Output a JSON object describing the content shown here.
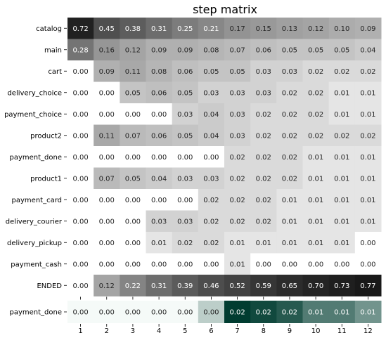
{
  "chart_data": [
    {
      "type": "heatmap",
      "title": "step matrix",
      "rows": [
        "catalog",
        "main",
        "cart",
        "delivery_choice",
        "payment_choice",
        "product2",
        "payment_done",
        "product1",
        "payment_card",
        "delivery_courier",
        "delivery_pickup",
        "payment_cash",
        "ENDED"
      ],
      "columns": [
        "1",
        "2",
        "3",
        "4",
        "5",
        "6",
        "7",
        "8",
        "9",
        "10",
        "11",
        "12"
      ],
      "values": [
        [
          0.72,
          0.45,
          0.38,
          0.31,
          0.25,
          0.21,
          0.17,
          0.15,
          0.13,
          0.12,
          0.1,
          0.09
        ],
        [
          0.28,
          0.16,
          0.12,
          0.09,
          0.09,
          0.08,
          0.07,
          0.06,
          0.05,
          0.05,
          0.05,
          0.04
        ],
        [
          0.0,
          0.09,
          0.11,
          0.08,
          0.06,
          0.05,
          0.05,
          0.03,
          0.03,
          0.02,
          0.02,
          0.02
        ],
        [
          0.0,
          0.0,
          0.05,
          0.06,
          0.05,
          0.03,
          0.03,
          0.03,
          0.02,
          0.02,
          0.01,
          0.01
        ],
        [
          0.0,
          0.0,
          0.0,
          0.0,
          0.03,
          0.04,
          0.03,
          0.02,
          0.02,
          0.02,
          0.01,
          0.01
        ],
        [
          0.0,
          0.11,
          0.07,
          0.06,
          0.05,
          0.04,
          0.03,
          0.02,
          0.02,
          0.02,
          0.02,
          0.02
        ],
        [
          0.0,
          0.0,
          0.0,
          0.0,
          0.0,
          0.0,
          0.02,
          0.02,
          0.02,
          0.01,
          0.01,
          0.01
        ],
        [
          0.0,
          0.07,
          0.05,
          0.04,
          0.03,
          0.03,
          0.02,
          0.02,
          0.02,
          0.01,
          0.01,
          0.01
        ],
        [
          0.0,
          0.0,
          0.0,
          0.0,
          0.0,
          0.02,
          0.02,
          0.02,
          0.01,
          0.01,
          0.01,
          0.01
        ],
        [
          0.0,
          0.0,
          0.0,
          0.03,
          0.03,
          0.02,
          0.02,
          0.02,
          0.01,
          0.01,
          0.01,
          0.01
        ],
        [
          0.0,
          0.0,
          0.0,
          0.01,
          0.02,
          0.02,
          0.01,
          0.01,
          0.01,
          0.01,
          0.01,
          0.0
        ],
        [
          0.0,
          0.0,
          0.0,
          0.0,
          0.0,
          0.0,
          0.01,
          0.0,
          0.0,
          0.0,
          0.0,
          0.0
        ],
        [
          0.0,
          0.12,
          0.22,
          0.31,
          0.39,
          0.46,
          0.52,
          0.59,
          0.65,
          0.7,
          0.73,
          0.77
        ]
      ],
      "colormap": "greys",
      "grid": false,
      "legend": "none"
    },
    {
      "type": "heatmap",
      "title": "",
      "rows": [
        "payment_done"
      ],
      "columns": [
        "1",
        "2",
        "3",
        "4",
        "5",
        "6",
        "7",
        "8",
        "9",
        "10",
        "11",
        "12"
      ],
      "values": [
        [
          0.0,
          0.0,
          0.0,
          0.0,
          0.0,
          0.0,
          0.02,
          0.02,
          0.02,
          0.01,
          0.01,
          0.01
        ]
      ],
      "display_intensity": [
        0.0,
        0.0,
        0.0,
        0.0,
        0.0,
        0.18,
        1.0,
        0.92,
        0.82,
        0.62,
        0.62,
        0.48
      ],
      "colormap": "teal",
      "grid": false,
      "legend": "none"
    }
  ]
}
